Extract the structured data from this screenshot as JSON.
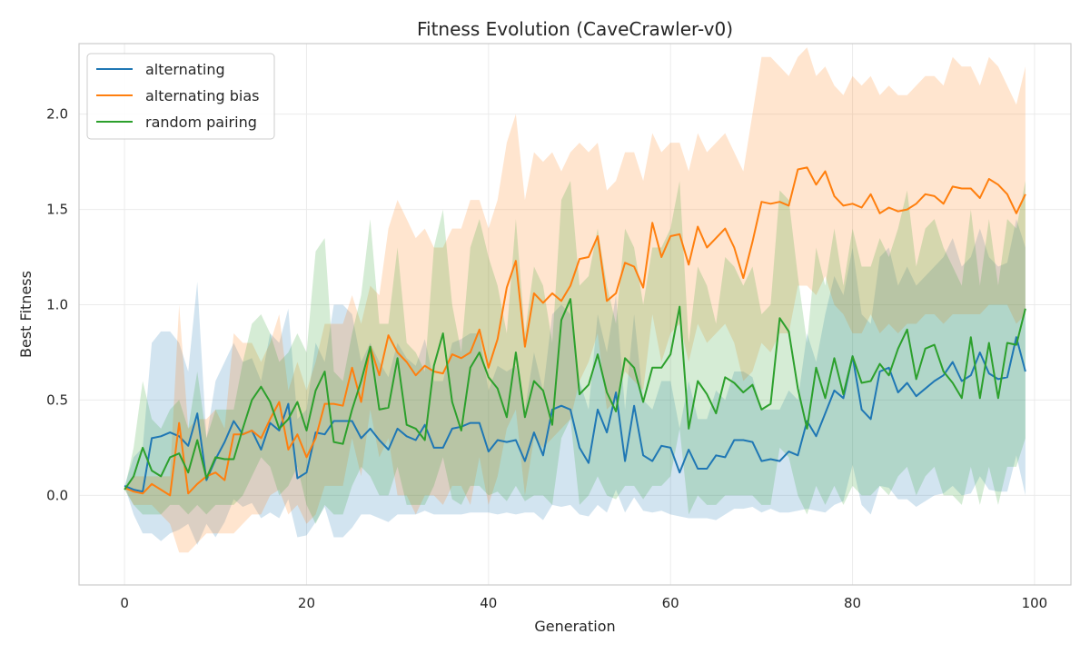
{
  "chart_data": {
    "type": "line",
    "title": "Fitness Evolution (CaveCrawler-v0)",
    "xlabel": "Generation",
    "ylabel": "Best Fitness",
    "xlim": [
      -5,
      104
    ],
    "ylim": [
      -0.47,
      2.37
    ],
    "xticks": [
      0,
      20,
      40,
      60,
      80,
      100
    ],
    "yticks": [
      0.0,
      0.5,
      1.0,
      1.5,
      2.0
    ],
    "xtick_labels": [
      "0",
      "20",
      "40",
      "60",
      "80",
      "100"
    ],
    "ytick_labels": [
      "0.0",
      "0.5",
      "1.0",
      "1.5",
      "2.0"
    ],
    "grid": true,
    "legend_position": "top-left",
    "x": [
      0,
      1,
      2,
      3,
      4,
      5,
      6,
      7,
      8,
      9,
      10,
      11,
      12,
      13,
      14,
      15,
      16,
      17,
      18,
      19,
      20,
      21,
      22,
      23,
      24,
      25,
      26,
      27,
      28,
      29,
      30,
      31,
      32,
      33,
      34,
      35,
      36,
      37,
      38,
      39,
      40,
      41,
      42,
      43,
      44,
      45,
      46,
      47,
      48,
      49,
      50,
      51,
      52,
      53,
      54,
      55,
      56,
      57,
      58,
      59,
      60,
      61,
      62,
      63,
      64,
      65,
      66,
      67,
      68,
      69,
      70,
      71,
      72,
      73,
      74,
      75,
      76,
      77,
      78,
      79,
      80,
      81,
      82,
      83,
      84,
      85,
      86,
      87,
      88,
      89,
      90,
      91,
      92,
      93,
      94,
      95,
      96,
      97,
      98,
      99
    ],
    "series": [
      {
        "name": "alternating",
        "color": "#1f77b4",
        "values": [
          0.05,
          0.03,
          0.02,
          0.3,
          0.31,
          0.33,
          0.31,
          0.26,
          0.43,
          0.08,
          0.19,
          0.28,
          0.39,
          0.32,
          0.34,
          0.24,
          0.38,
          0.34,
          0.48,
          0.09,
          0.12,
          0.33,
          0.32,
          0.39,
          0.39,
          0.39,
          0.3,
          0.35,
          0.29,
          0.24,
          0.35,
          0.31,
          0.29,
          0.37,
          0.25,
          0.25,
          0.35,
          0.36,
          0.38,
          0.38,
          0.23,
          0.29,
          0.28,
          0.29,
          0.18,
          0.33,
          0.21,
          0.45,
          0.47,
          0.45,
          0.25,
          0.17,
          0.45,
          0.33,
          0.54,
          0.18,
          0.47,
          0.21,
          0.18,
          0.26,
          0.25,
          0.12,
          0.24,
          0.14,
          0.14,
          0.21,
          0.2,
          0.29,
          0.29,
          0.28,
          0.18,
          0.19,
          0.18,
          0.23,
          0.21,
          0.39,
          0.31,
          0.43,
          0.55,
          0.51,
          0.73,
          0.45,
          0.4,
          0.65,
          0.67,
          0.54,
          0.59,
          0.52,
          0.56,
          0.6,
          0.63,
          0.7,
          0.6,
          0.63,
          0.75,
          0.64,
          0.61,
          0.62,
          0.83,
          0.65
        ],
        "upper": [
          0.05,
          0.2,
          0.25,
          0.8,
          0.86,
          0.86,
          0.8,
          0.65,
          1.12,
          0.3,
          0.6,
          0.7,
          0.8,
          0.7,
          0.72,
          0.6,
          0.85,
          0.8,
          0.98,
          0.4,
          0.45,
          0.8,
          0.7,
          1.0,
          1.0,
          0.95,
          0.7,
          0.8,
          0.7,
          0.62,
          0.8,
          0.72,
          0.68,
          0.82,
          0.6,
          0.6,
          0.8,
          0.82,
          0.85,
          0.85,
          0.55,
          0.68,
          0.65,
          0.68,
          0.45,
          0.75,
          0.55,
          0.95,
          1.0,
          0.95,
          0.6,
          0.45,
          0.95,
          0.75,
          1.05,
          0.45,
          0.95,
          0.5,
          0.45,
          0.6,
          0.6,
          0.35,
          0.6,
          0.4,
          0.4,
          0.55,
          0.5,
          0.65,
          0.65,
          0.62,
          0.45,
          0.45,
          0.45,
          0.55,
          0.5,
          0.85,
          0.7,
          0.95,
          1.15,
          1.05,
          1.3,
          0.95,
          0.9,
          1.25,
          1.3,
          1.1,
          1.2,
          1.1,
          1.15,
          1.2,
          1.25,
          1.35,
          1.2,
          1.25,
          1.4,
          1.25,
          1.2,
          1.22,
          1.45,
          1.3
        ],
        "lower": [
          0.05,
          -0.1,
          -0.2,
          -0.2,
          -0.24,
          -0.2,
          -0.18,
          -0.15,
          -0.26,
          -0.15,
          -0.22,
          -0.14,
          -0.02,
          -0.06,
          -0.04,
          -0.12,
          -0.09,
          -0.12,
          -0.02,
          -0.22,
          -0.21,
          -0.14,
          -0.06,
          -0.22,
          -0.22,
          -0.17,
          -0.1,
          -0.1,
          -0.12,
          -0.14,
          -0.1,
          -0.1,
          -0.1,
          -0.08,
          -0.1,
          -0.1,
          -0.1,
          -0.1,
          -0.09,
          -0.09,
          -0.09,
          -0.1,
          -0.09,
          -0.1,
          -0.09,
          -0.09,
          -0.13,
          -0.05,
          -0.06,
          -0.05,
          -0.1,
          -0.11,
          -0.05,
          -0.09,
          0.03,
          -0.09,
          -0.01,
          -0.08,
          -0.09,
          -0.08,
          -0.1,
          -0.11,
          -0.12,
          -0.12,
          -0.12,
          -0.13,
          -0.1,
          -0.07,
          -0.07,
          -0.06,
          -0.09,
          -0.07,
          -0.09,
          -0.09,
          -0.08,
          -0.07,
          -0.08,
          -0.09,
          -0.05,
          -0.03,
          0.16,
          -0.05,
          -0.1,
          0.05,
          0.04,
          -0.02,
          -0.02,
          -0.06,
          -0.03,
          0.0,
          0.01,
          0.05,
          0.0,
          0.01,
          0.1,
          0.03,
          0.02,
          0.02,
          0.21,
          0.0
        ]
      },
      {
        "name": "alternating bias",
        "color": "#ff7f0e",
        "values": [
          0.04,
          0.02,
          0.01,
          0.06,
          0.03,
          0.0,
          0.38,
          0.01,
          0.06,
          0.1,
          0.12,
          0.08,
          0.32,
          0.32,
          0.34,
          0.3,
          0.4,
          0.49,
          0.24,
          0.32,
          0.2,
          0.3,
          0.48,
          0.48,
          0.47,
          0.67,
          0.49,
          0.78,
          0.63,
          0.84,
          0.75,
          0.7,
          0.63,
          0.68,
          0.65,
          0.64,
          0.74,
          0.72,
          0.75,
          0.87,
          0.67,
          0.82,
          1.09,
          1.23,
          0.78,
          1.06,
          1.01,
          1.06,
          1.02,
          1.1,
          1.24,
          1.25,
          1.36,
          1.02,
          1.06,
          1.22,
          1.2,
          1.09,
          1.43,
          1.25,
          1.36,
          1.37,
          1.21,
          1.41,
          1.3,
          1.35,
          1.4,
          1.3,
          1.14,
          1.33,
          1.54,
          1.53,
          1.54,
          1.52,
          1.71,
          1.72,
          1.63,
          1.7,
          1.57,
          1.52,
          1.53,
          1.51,
          1.58,
          1.48,
          1.51,
          1.49,
          1.5,
          1.53,
          1.58,
          1.57,
          1.53,
          1.62,
          1.61,
          1.61,
          1.56,
          1.66,
          1.63,
          1.58,
          1.48,
          1.58
        ],
        "upper": [
          0.04,
          0.1,
          0.1,
          0.1,
          0.1,
          0.1,
          1.0,
          0.35,
          0.4,
          0.4,
          0.45,
          0.35,
          0.85,
          0.8,
          0.8,
          0.7,
          0.8,
          0.95,
          0.55,
          0.7,
          0.55,
          0.7,
          0.9,
          0.9,
          0.9,
          1.05,
          0.9,
          1.1,
          1.05,
          1.4,
          1.55,
          1.45,
          1.35,
          1.4,
          1.3,
          1.3,
          1.4,
          1.4,
          1.55,
          1.55,
          1.4,
          1.55,
          1.85,
          2.0,
          1.55,
          1.8,
          1.75,
          1.8,
          1.7,
          1.8,
          1.85,
          1.8,
          1.85,
          1.6,
          1.65,
          1.8,
          1.8,
          1.65,
          1.9,
          1.8,
          1.85,
          1.85,
          1.7,
          1.9,
          1.8,
          1.85,
          1.9,
          1.8,
          1.7,
          2.0,
          2.3,
          2.3,
          2.25,
          2.2,
          2.3,
          2.35,
          2.2,
          2.25,
          2.15,
          2.1,
          2.2,
          2.15,
          2.2,
          2.1,
          2.15,
          2.1,
          2.1,
          2.15,
          2.2,
          2.2,
          2.15,
          2.3,
          2.25,
          2.25,
          2.15,
          2.3,
          2.25,
          2.15,
          2.05,
          2.25
        ],
        "lower": [
          0.04,
          -0.05,
          -0.05,
          -0.05,
          -0.1,
          -0.15,
          -0.3,
          -0.3,
          -0.25,
          -0.2,
          -0.2,
          -0.2,
          -0.2,
          -0.15,
          -0.1,
          -0.1,
          -0.0,
          0.03,
          -0.1,
          -0.05,
          -0.15,
          -0.1,
          0.05,
          0.05,
          0.05,
          0.3,
          0.1,
          0.45,
          0.2,
          0.3,
          0.0,
          0.0,
          -0.1,
          0.0,
          0.0,
          -0.05,
          0.05,
          0.05,
          -0.05,
          0.2,
          -0.05,
          0.1,
          0.35,
          0.45,
          0.0,
          0.3,
          0.25,
          0.3,
          0.35,
          0.4,
          0.6,
          0.7,
          0.85,
          0.45,
          0.5,
          0.65,
          0.6,
          0.55,
          0.95,
          0.7,
          0.85,
          0.9,
          0.7,
          0.9,
          0.8,
          0.85,
          0.9,
          0.8,
          0.6,
          0.65,
          0.8,
          0.75,
          0.85,
          0.85,
          1.1,
          1.1,
          1.05,
          1.15,
          1.0,
          0.95,
          0.85,
          0.85,
          0.95,
          0.85,
          0.9,
          0.85,
          0.9,
          0.9,
          0.95,
          0.95,
          0.9,
          0.95,
          0.95,
          0.95,
          0.95,
          1.0,
          1.0,
          1.0,
          0.9,
          0.95
        ]
      },
      {
        "name": "random pairing",
        "color": "#2ca02c",
        "values": [
          0.03,
          0.1,
          0.25,
          0.13,
          0.1,
          0.2,
          0.22,
          0.12,
          0.29,
          0.09,
          0.2,
          0.19,
          0.19,
          0.35,
          0.5,
          0.57,
          0.49,
          0.35,
          0.4,
          0.49,
          0.34,
          0.55,
          0.65,
          0.28,
          0.27,
          0.45,
          0.6,
          0.78,
          0.45,
          0.46,
          0.72,
          0.37,
          0.35,
          0.29,
          0.68,
          0.85,
          0.49,
          0.34,
          0.67,
          0.75,
          0.62,
          0.56,
          0.41,
          0.75,
          0.41,
          0.6,
          0.55,
          0.37,
          0.92,
          1.03,
          0.53,
          0.58,
          0.74,
          0.54,
          0.44,
          0.72,
          0.67,
          0.49,
          0.67,
          0.67,
          0.74,
          0.99,
          0.35,
          0.6,
          0.53,
          0.43,
          0.62,
          0.59,
          0.54,
          0.58,
          0.45,
          0.48,
          0.93,
          0.86,
          0.56,
          0.35,
          0.67,
          0.51,
          0.72,
          0.53,
          0.73,
          0.59,
          0.6,
          0.69,
          0.63,
          0.77,
          0.87,
          0.61,
          0.77,
          0.79,
          0.65,
          0.59,
          0.51,
          0.83,
          0.51,
          0.8,
          0.51,
          0.8,
          0.79,
          0.98
        ],
        "upper": [
          0.03,
          0.25,
          0.6,
          0.4,
          0.35,
          0.45,
          0.5,
          0.35,
          0.65,
          0.3,
          0.45,
          0.45,
          0.45,
          0.7,
          0.9,
          0.95,
          0.85,
          0.7,
          0.75,
          0.85,
          0.75,
          1.28,
          1.35,
          0.65,
          0.6,
          0.85,
          1.05,
          1.45,
          0.9,
          0.9,
          1.3,
          0.8,
          0.75,
          0.65,
          1.3,
          1.5,
          1.0,
          0.75,
          1.3,
          1.45,
          1.25,
          1.1,
          0.85,
          1.45,
          0.85,
          1.2,
          1.1,
          0.8,
          1.55,
          1.65,
          1.1,
          1.15,
          1.4,
          1.1,
          0.9,
          1.4,
          1.3,
          1.0,
          1.3,
          1.3,
          1.4,
          1.65,
          0.8,
          1.2,
          1.1,
          0.9,
          1.25,
          1.2,
          1.1,
          1.2,
          0.95,
          1.0,
          1.6,
          1.55,
          1.15,
          0.8,
          1.3,
          1.1,
          1.4,
          1.1,
          1.4,
          1.2,
          1.2,
          1.35,
          1.25,
          1.4,
          1.6,
          1.2,
          1.4,
          1.45,
          1.3,
          1.2,
          1.1,
          1.5,
          1.1,
          1.45,
          1.1,
          1.45,
          1.4,
          1.65
        ],
        "lower": [
          0.03,
          -0.05,
          -0.1,
          -0.1,
          -0.1,
          -0.05,
          -0.05,
          -0.1,
          -0.05,
          -0.1,
          -0.05,
          -0.05,
          -0.05,
          0.0,
          0.1,
          0.2,
          0.15,
          0.0,
          0.05,
          0.15,
          -0.05,
          -0.15,
          -0.05,
          -0.1,
          -0.1,
          0.05,
          0.15,
          0.1,
          0.0,
          0.0,
          0.15,
          -0.05,
          -0.05,
          -0.05,
          0.05,
          0.2,
          -0.02,
          -0.05,
          0.05,
          0.05,
          0.0,
          0.02,
          -0.03,
          0.05,
          -0.03,
          0.0,
          0.0,
          -0.05,
          0.3,
          0.4,
          -0.05,
          0.0,
          0.1,
          0.0,
          -0.02,
          0.05,
          0.05,
          -0.02,
          0.05,
          0.05,
          0.1,
          0.35,
          -0.1,
          0.0,
          -0.05,
          -0.05,
          0.0,
          0.0,
          0.0,
          0.0,
          -0.05,
          -0.05,
          0.25,
          0.2,
          0.0,
          -0.1,
          0.05,
          -0.05,
          0.05,
          -0.05,
          0.05,
          0.0,
          0.0,
          0.05,
          0.0,
          0.1,
          0.15,
          0.0,
          0.1,
          0.15,
          0.0,
          0.0,
          -0.05,
          0.15,
          -0.05,
          0.15,
          -0.05,
          0.15,
          0.15,
          0.3
        ]
      }
    ]
  }
}
